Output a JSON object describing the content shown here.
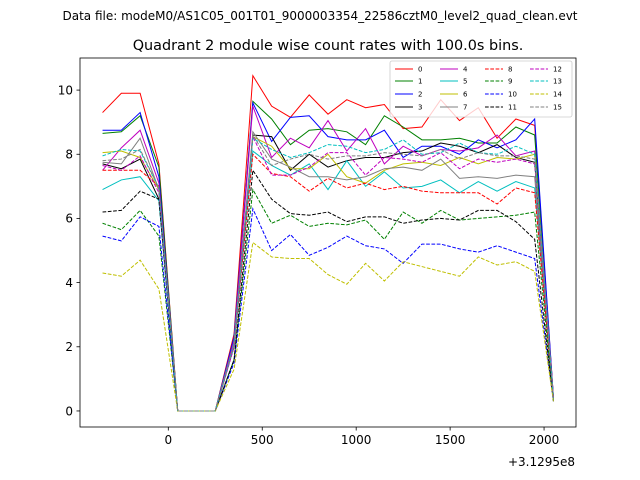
{
  "header": {
    "datafile": "Data file: modeM0/AS1C05_001T01_9000003354_22586cztM0_level2_quad_clean.evt"
  },
  "chart_data": {
    "type": "line",
    "title": "Quadrant 2 module wise count rates with 100.0s bins.",
    "xlabel": "",
    "ylabel": "",
    "x_offset_label": "+3.1295e8",
    "xlim": [
      -470,
      2170
    ],
    "ylim": [
      -0.5,
      11.0
    ],
    "xticks": [
      0,
      500,
      1000,
      1500,
      2000
    ],
    "yticks": [
      0,
      2,
      4,
      6,
      8,
      10
    ],
    "grid": false,
    "legend_location": "top-right",
    "x": [
      -350,
      -250,
      -150,
      -50,
      50,
      150,
      250,
      350,
      450,
      550,
      650,
      750,
      850,
      950,
      1050,
      1150,
      1250,
      1350,
      1450,
      1550,
      1650,
      1750,
      1850,
      1950,
      2050
    ],
    "series": [
      {
        "name": "0",
        "color": "#ff0000",
        "dash": "solid",
        "values": [
          9.3,
          9.9,
          9.9,
          7.7,
          0,
          0,
          0,
          2.4,
          10.45,
          9.5,
          9.15,
          9.85,
          9.25,
          9.7,
          9.45,
          9.55,
          8.8,
          8.85,
          9.7,
          9.05,
          9.45,
          8.5,
          9.1,
          8.9,
          0.4
        ]
      },
      {
        "name": "1",
        "color": "#008000",
        "dash": "solid",
        "values": [
          8.65,
          8.7,
          9.2,
          7.6,
          0,
          0,
          0,
          2.3,
          9.65,
          9.1,
          8.3,
          8.75,
          8.8,
          8.7,
          8.3,
          9.2,
          8.85,
          8.45,
          8.45,
          8.5,
          8.35,
          8.35,
          8.85,
          8.6,
          0.4
        ]
      },
      {
        "name": "2",
        "color": "#0000ff",
        "dash": "solid",
        "values": [
          8.75,
          8.75,
          9.3,
          7.3,
          0,
          0,
          0,
          2.3,
          9.6,
          8.4,
          9.15,
          9.2,
          8.55,
          8.45,
          8.45,
          8.75,
          7.9,
          8.25,
          8.25,
          8.0,
          8.45,
          8.2,
          8.45,
          9.1,
          0.4
        ]
      },
      {
        "name": "3",
        "color": "#000000",
        "dash": "solid",
        "values": [
          7.7,
          7.55,
          7.85,
          6.6,
          0,
          0,
          0,
          2.1,
          8.6,
          8.55,
          7.5,
          8.0,
          7.6,
          7.8,
          7.9,
          7.9,
          8.05,
          8.1,
          8.35,
          8.25,
          8.05,
          8.3,
          7.9,
          7.75,
          0.35
        ]
      },
      {
        "name": "4",
        "color": "#bf00bf",
        "dash": "solid",
        "values": [
          7.5,
          8.2,
          8.75,
          7.1,
          0,
          0,
          0,
          2.2,
          9.5,
          7.9,
          8.5,
          8.2,
          9.05,
          8.1,
          8.8,
          7.7,
          8.25,
          7.95,
          8.15,
          8.1,
          8.2,
          8.6,
          7.95,
          8.1,
          0.4
        ]
      },
      {
        "name": "5",
        "color": "#00bfbf",
        "dash": "solid",
        "values": [
          6.9,
          7.2,
          7.3,
          6.55,
          0,
          0,
          0,
          2.0,
          8.1,
          7.65,
          7.35,
          7.7,
          6.9,
          7.8,
          7.0,
          7.45,
          6.95,
          7.0,
          7.2,
          6.8,
          7.15,
          6.85,
          7.15,
          6.95,
          0.35
        ]
      },
      {
        "name": "6",
        "color": "#bfbf00",
        "dash": "solid",
        "values": [
          8.05,
          8.1,
          7.9,
          6.9,
          0,
          0,
          0,
          2.1,
          8.55,
          8.25,
          7.55,
          7.55,
          8.0,
          7.3,
          7.1,
          7.5,
          7.7,
          7.75,
          7.65,
          7.9,
          7.7,
          7.9,
          7.85,
          8.0,
          0.35
        ]
      },
      {
        "name": "7",
        "color": "#808080",
        "dash": "solid",
        "values": [
          7.75,
          7.7,
          8.5,
          6.9,
          0,
          0,
          0,
          2.1,
          8.7,
          7.85,
          7.6,
          7.3,
          7.3,
          7.2,
          7.3,
          7.55,
          7.6,
          7.5,
          7.85,
          7.25,
          7.3,
          7.25,
          7.35,
          7.3,
          0.35
        ]
      },
      {
        "name": "8",
        "color": "#ff0000",
        "dash": "dashed",
        "values": [
          7.5,
          7.5,
          7.5,
          7.0,
          0,
          0,
          0,
          2.0,
          8.0,
          7.4,
          7.3,
          6.85,
          7.25,
          6.95,
          7.1,
          6.9,
          7.0,
          6.85,
          6.8,
          6.8,
          6.8,
          6.45,
          6.95,
          6.8,
          0.35
        ]
      },
      {
        "name": "9",
        "color": "#008000",
        "dash": "dashed",
        "values": [
          5.85,
          5.65,
          6.25,
          5.45,
          0,
          0,
          0,
          1.6,
          6.9,
          5.85,
          6.1,
          5.75,
          5.85,
          5.8,
          5.95,
          5.35,
          6.2,
          5.85,
          6.25,
          5.95,
          6.0,
          6.05,
          6.1,
          6.2,
          0.3
        ]
      },
      {
        "name": "10",
        "color": "#0000ff",
        "dash": "dashed",
        "values": [
          5.45,
          5.3,
          6.05,
          5.75,
          0,
          0,
          0,
          1.5,
          6.3,
          5.0,
          5.5,
          4.85,
          5.1,
          5.45,
          5.15,
          5.05,
          4.6,
          5.2,
          5.2,
          5.05,
          4.95,
          5.15,
          4.95,
          4.75,
          0.3
        ]
      },
      {
        "name": "11",
        "color": "#000000",
        "dash": "dashed",
        "values": [
          6.2,
          6.25,
          6.85,
          6.6,
          0,
          0,
          0,
          1.6,
          7.5,
          6.6,
          6.15,
          6.1,
          6.2,
          5.9,
          6.05,
          6.05,
          5.85,
          5.95,
          6.0,
          5.95,
          6.25,
          6.25,
          5.9,
          5.35,
          0.3
        ]
      },
      {
        "name": "12",
        "color": "#bf00bf",
        "dash": "dashed",
        "values": [
          7.65,
          7.5,
          7.95,
          6.8,
          0,
          0,
          0,
          2.0,
          8.55,
          7.35,
          7.35,
          7.6,
          8.05,
          8.05,
          7.35,
          7.9,
          7.85,
          7.75,
          8.05,
          7.55,
          7.85,
          7.75,
          7.85,
          7.7,
          0.35
        ]
      },
      {
        "name": "13",
        "color": "#00bfbf",
        "dash": "dashed",
        "values": [
          7.95,
          8.15,
          8.1,
          6.95,
          0,
          0,
          0,
          2.1,
          8.5,
          8.15,
          7.9,
          8.05,
          8.3,
          8.25,
          8.05,
          8.15,
          8.45,
          8.0,
          8.05,
          8.35,
          8.05,
          8.0,
          8.25,
          8.0,
          0.35
        ]
      },
      {
        "name": "14",
        "color": "#bfbf00",
        "dash": "dashed",
        "values": [
          4.3,
          4.2,
          4.7,
          3.8,
          0,
          0,
          0,
          1.3,
          5.25,
          4.8,
          4.75,
          4.75,
          4.25,
          3.95,
          4.6,
          4.05,
          4.65,
          4.5,
          4.35,
          4.2,
          4.8,
          4.55,
          4.65,
          4.35,
          0.3
        ]
      },
      {
        "name": "15",
        "color": "#808080",
        "dash": "dashed",
        "values": [
          7.8,
          7.85,
          8.15,
          6.95,
          0,
          0,
          0,
          2.1,
          8.6,
          7.65,
          7.85,
          8.0,
          7.85,
          7.95,
          7.95,
          8.05,
          8.0,
          7.95,
          8.15,
          7.85,
          8.05,
          7.95,
          7.95,
          7.85,
          0.35
        ]
      }
    ]
  }
}
